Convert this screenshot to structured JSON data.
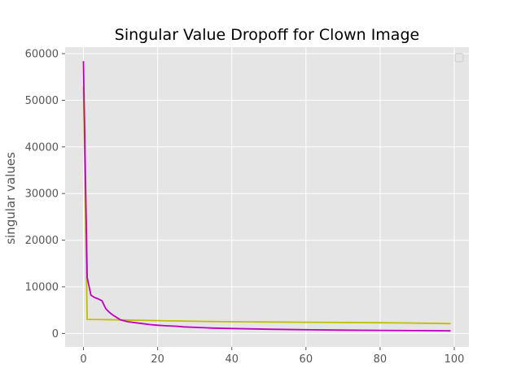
{
  "chart_data": {
    "type": "line",
    "title": "Singular Value Dropoff for Clown Image",
    "xlabel": "",
    "ylabel": "singular values",
    "xlim": [
      -4.95,
      103.95
    ],
    "ylim": [
      -2900,
      61400
    ],
    "xticks": [
      0,
      20,
      40,
      60,
      80,
      100
    ],
    "yticks": [
      0,
      10000,
      20000,
      30000,
      40000,
      50000,
      60000
    ],
    "grid": true,
    "legend": "top-right (empty)",
    "colors": {
      "background": "#E5E5E5",
      "grid": "#FFFFFF",
      "tick_label": "#555555"
    },
    "series": [
      {
        "color": "#BFBF00",
        "x": [
          0,
          1,
          10,
          20,
          30,
          40,
          50,
          60,
          70,
          80,
          90,
          99
        ],
        "y": [
          53000,
          3000,
          2900,
          2750,
          2600,
          2500,
          2450,
          2400,
          2350,
          2300,
          2200,
          2100
        ]
      },
      {
        "color": "#BF00BF",
        "x": [
          0,
          1,
          2,
          3,
          4,
          5,
          6,
          7,
          8,
          9,
          10,
          12,
          14,
          16,
          18,
          20,
          22,
          25,
          27,
          30,
          35,
          40,
          50,
          60,
          70,
          80,
          90,
          99
        ],
        "y": [
          58400,
          12000,
          8200,
          7700,
          7400,
          7000,
          5300,
          4500,
          3900,
          3400,
          2900,
          2500,
          2300,
          2100,
          1900,
          1750,
          1650,
          1550,
          1400,
          1300,
          1150,
          1050,
          900,
          800,
          700,
          650,
          600,
          550
        ]
      }
    ]
  }
}
